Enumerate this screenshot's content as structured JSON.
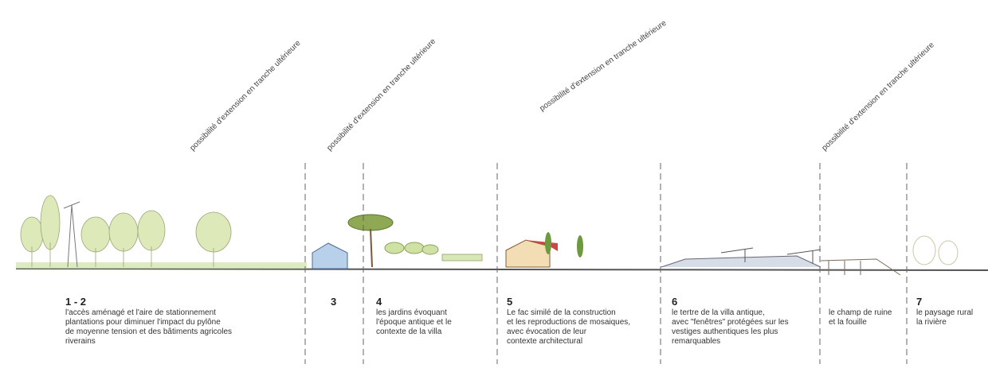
{
  "annotations": [
    "possibilité d'extension en tranche ultérieure",
    "possibilité d'extension en tranche ultérieure",
    "possibilité d'extension en tranche ultérieure",
    "possibilité d'extension en tranche ultérieure"
  ],
  "zones": [
    {
      "number": "1 - 2",
      "lines": [
        "l'accès aménagé et l'aire de stationnement",
        "plantations pour diminuer l'impact du pylône",
        "de moyenne tension et des bâtiments agricoles",
        "riverains"
      ]
    },
    {
      "number": "3",
      "lines": []
    },
    {
      "number": "4",
      "lines": [
        "les jardins évoquant",
        "l'époque antique et le",
        "contexte de la villa"
      ]
    },
    {
      "number": "5",
      "lines": [
        "Le fac similé de la construction",
        "et les reproductions de mosaiques,",
        "avec évocation de leur",
        "contexte architectural"
      ]
    },
    {
      "number": "6",
      "lines": [
        "le tertre de la villa antique,",
        "avec \"fenêtres\" protégées sur les",
        "vestiges authentiques les plus",
        "remarquables"
      ]
    },
    {
      "lines": [
        "le champ de ruine",
        "et la fouille"
      ]
    },
    {
      "number": "7",
      "lines": [
        "le paysage rural",
        "la rivière"
      ]
    }
  ]
}
